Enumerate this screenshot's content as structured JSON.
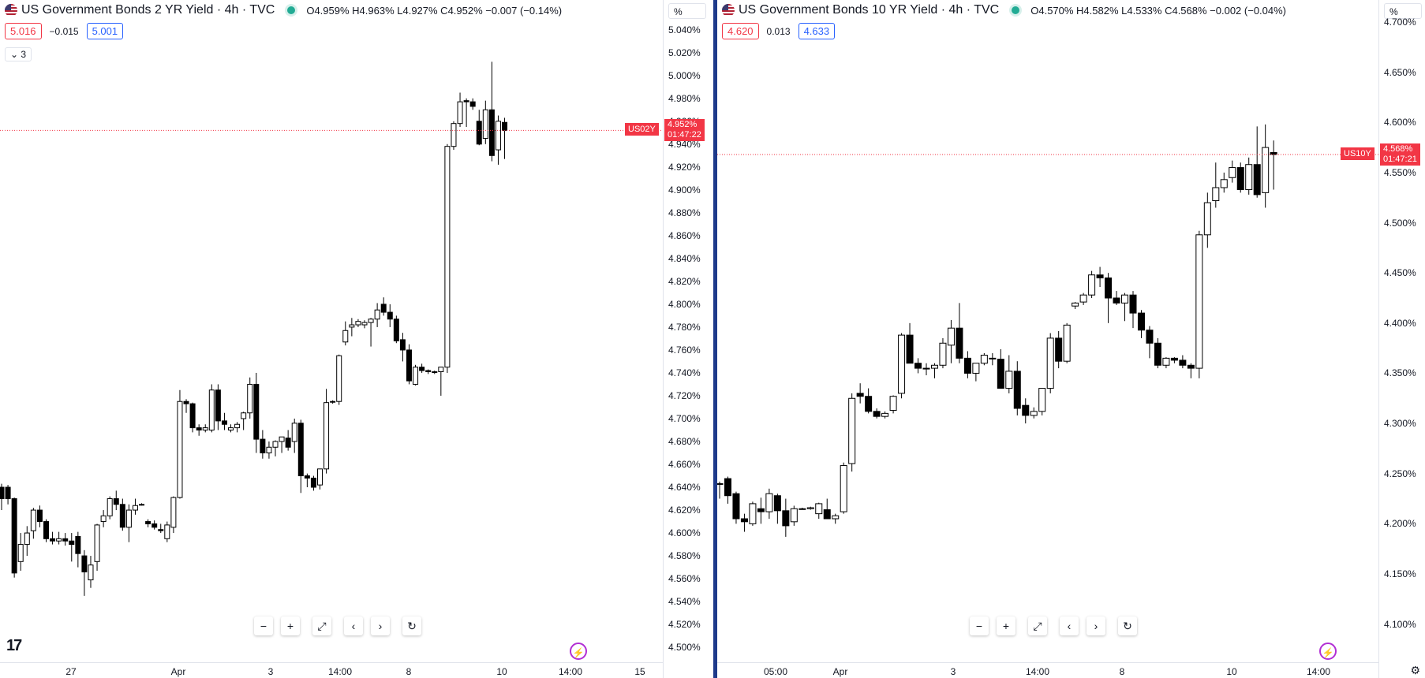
{
  "left": {
    "title": "US Government Bonds 2 YR Yield · 4h · TVC",
    "ohlc": "O4.959% H4.963% L4.927% C4.952% −0.007 (−0.14%)",
    "bid": "5.016",
    "spread": "−0.015",
    "ask": "5.001",
    "collapse_label": "3",
    "y_unit": "%",
    "symbol_tag": "US02Y",
    "last_price": "4.952%",
    "countdown": "01:47:22",
    "last_value": 4.952,
    "y_range": [
      4.487,
      5.066
    ],
    "y_ticks": [
      "5.040%",
      "5.020%",
      "5.000%",
      "4.980%",
      "4.960%",
      "4.940%",
      "4.920%",
      "4.900%",
      "4.880%",
      "4.860%",
      "4.840%",
      "4.820%",
      "4.800%",
      "4.780%",
      "4.760%",
      "4.740%",
      "4.720%",
      "4.700%",
      "4.680%",
      "4.660%",
      "4.640%",
      "4.620%",
      "4.600%",
      "4.580%",
      "4.560%",
      "4.540%",
      "4.520%",
      "4.500%"
    ],
    "x_ticks": [
      "27",
      "Apr",
      "3",
      "14:00",
      "8",
      "10",
      "14:00",
      "15"
    ],
    "candles": [
      [
        4.64,
        4.643,
        4.62,
        4.63
      ],
      [
        4.64,
        4.642,
        4.625,
        4.63
      ],
      [
        4.63,
        4.631,
        4.561,
        4.565
      ],
      [
        4.575,
        4.6,
        4.567,
        4.59
      ],
      [
        4.59,
        4.606,
        4.58,
        4.6
      ],
      [
        4.602,
        4.622,
        4.595,
        4.62
      ],
      [
        4.62,
        4.624,
        4.605,
        4.61
      ],
      [
        4.61,
        4.612,
        4.592,
        4.595
      ],
      [
        4.595,
        4.601,
        4.59,
        4.593
      ],
      [
        4.593,
        4.601,
        4.59,
        4.595
      ],
      [
        4.595,
        4.6,
        4.589,
        4.593
      ],
      [
        4.593,
        4.6,
        4.575,
        4.59
      ],
      [
        4.597,
        4.601,
        4.57,
        4.582
      ],
      [
        4.58,
        4.585,
        4.545,
        4.566
      ],
      [
        4.559,
        4.58,
        4.552,
        4.572
      ],
      [
        4.575,
        4.608,
        4.567,
        4.607
      ],
      [
        4.61,
        4.62,
        4.605,
        4.615
      ],
      [
        4.615,
        4.632,
        4.612,
        4.63
      ],
      [
        4.63,
        4.637,
        4.62,
        4.625
      ],
      [
        4.625,
        4.63,
        4.602,
        4.605
      ],
      [
        4.605,
        4.625,
        4.592,
        4.62
      ],
      [
        4.62,
        4.63,
        4.616,
        4.624
      ],
      [
        4.625,
        4.626,
        4.624,
        4.625
      ],
      [
        4.61,
        4.612,
        4.605,
        4.608
      ],
      [
        4.608,
        4.611,
        4.603,
        4.605
      ],
      [
        4.603,
        4.608,
        4.6,
        4.602
      ],
      [
        4.595,
        4.61,
        4.592,
        4.607
      ],
      [
        4.605,
        4.632,
        4.6,
        4.631
      ],
      [
        4.631,
        4.725,
        4.63,
        4.715
      ],
      [
        4.715,
        4.717,
        4.705,
        4.713
      ],
      [
        4.713,
        4.714,
        4.688,
        4.692
      ],
      [
        4.692,
        4.695,
        4.685,
        4.69
      ],
      [
        4.69,
        4.695,
        4.688,
        4.692
      ],
      [
        4.69,
        4.73,
        4.688,
        4.725
      ],
      [
        4.725,
        4.73,
        4.69,
        4.698
      ],
      [
        4.698,
        4.705,
        4.69,
        4.695
      ],
      [
        4.69,
        4.695,
        4.688,
        4.692
      ],
      [
        4.692,
        4.697,
        4.688,
        4.695
      ],
      [
        4.7,
        4.706,
        4.69,
        4.705
      ],
      [
        4.705,
        4.736,
        4.7,
        4.73
      ],
      [
        4.73,
        4.74,
        4.67,
        4.682
      ],
      [
        4.682,
        4.69,
        4.665,
        4.67
      ],
      [
        4.67,
        4.68,
        4.665,
        4.675
      ],
      [
        4.675,
        4.681,
        4.667,
        4.68
      ],
      [
        4.68,
        4.684,
        4.67,
        4.684
      ],
      [
        4.683,
        4.69,
        4.672,
        4.675
      ],
      [
        4.68,
        4.7,
        4.67,
        4.696
      ],
      [
        4.696,
        4.699,
        4.635,
        4.65
      ],
      [
        4.65,
        4.652,
        4.64,
        4.648
      ],
      [
        4.648,
        4.65,
        4.637,
        4.64
      ],
      [
        4.642,
        4.656,
        4.638,
        4.656
      ],
      [
        4.656,
        4.726,
        4.652,
        4.714
      ],
      [
        4.715,
        4.716,
        4.713,
        4.715
      ],
      [
        4.715,
        4.756,
        4.712,
        4.755
      ],
      [
        4.767,
        4.785,
        4.764,
        4.777
      ],
      [
        4.78,
        4.788,
        4.772,
        4.782
      ],
      [
        4.782,
        4.787,
        4.78,
        4.785
      ],
      [
        4.782,
        4.786,
        4.779,
        4.784
      ],
      [
        4.784,
        4.788,
        4.763,
        4.787
      ],
      [
        4.787,
        4.801,
        4.78,
        4.795
      ],
      [
        4.8,
        4.806,
        4.79,
        4.793
      ],
      [
        4.793,
        4.8,
        4.78,
        4.787
      ],
      [
        4.787,
        4.79,
        4.766,
        4.768
      ],
      [
        4.769,
        4.775,
        4.75,
        4.76
      ],
      [
        4.76,
        4.765,
        4.73,
        4.733
      ],
      [
        4.73,
        4.747,
        4.729,
        4.745
      ],
      [
        4.745,
        4.748,
        4.74,
        4.742
      ],
      [
        4.742,
        4.743,
        4.739,
        4.741
      ],
      [
        4.741,
        4.742,
        4.739,
        4.741
      ],
      [
        4.741,
        4.745,
        4.72,
        4.745
      ],
      [
        4.745,
        4.94,
        4.74,
        4.938
      ],
      [
        4.938,
        4.96,
        4.935,
        4.958
      ],
      [
        4.958,
        4.985,
        4.955,
        4.977
      ],
      [
        4.978,
        4.98,
        4.955,
        4.977
      ],
      [
        4.977,
        4.98,
        4.97,
        4.973
      ],
      [
        4.96,
        4.97,
        4.939,
        4.94
      ],
      [
        4.945,
        4.978,
        4.94,
        4.97
      ],
      [
        4.97,
        5.012,
        4.925,
        4.93
      ],
      [
        4.935,
        4.965,
        4.922,
        4.96
      ],
      [
        4.959,
        4.963,
        4.927,
        4.952
      ]
    ]
  },
  "right": {
    "title": "US Government Bonds 10 YR Yield · 4h · TVC",
    "ohlc": "O4.570% H4.582% L4.533% C4.568% −0.002 (−0.04%)",
    "bid": "4.620",
    "spread": "0.013",
    "ask": "4.633",
    "y_unit": "%",
    "symbol_tag": "US10Y",
    "last_price": "4.568%",
    "countdown": "01:47:21",
    "last_value": 4.568,
    "y_range": [
      4.062,
      4.722
    ],
    "y_ticks": [
      "4.700%",
      "4.650%",
      "4.600%",
      "4.550%",
      "4.500%",
      "4.450%",
      "4.400%",
      "4.350%",
      "4.300%",
      "4.250%",
      "4.200%",
      "4.150%",
      "4.100%"
    ],
    "x_ticks": [
      "05:00",
      "Apr",
      "3",
      "14:00",
      "8",
      "10",
      "14:00"
    ],
    "candles": [
      [
        4.24,
        4.242,
        4.225,
        4.24
      ],
      [
        4.245,
        4.247,
        4.22,
        4.228
      ],
      [
        4.23,
        4.232,
        4.2,
        4.205
      ],
      [
        4.205,
        4.21,
        4.192,
        4.202
      ],
      [
        4.2,
        4.222,
        4.198,
        4.22
      ],
      [
        4.215,
        4.226,
        4.2,
        4.212
      ],
      [
        4.212,
        4.235,
        4.205,
        4.23
      ],
      [
        4.228,
        4.23,
        4.2,
        4.213
      ],
      [
        4.213,
        4.225,
        4.187,
        4.198
      ],
      [
        4.202,
        4.218,
        4.198,
        4.215
      ],
      [
        4.215,
        4.216,
        4.214,
        4.215
      ],
      [
        4.215,
        4.217,
        4.214,
        4.216
      ],
      [
        4.21,
        4.221,
        4.205,
        4.22
      ],
      [
        4.214,
        4.225,
        4.208,
        4.205
      ],
      [
        4.205,
        4.21,
        4.2,
        4.208
      ],
      [
        4.212,
        4.261,
        4.21,
        4.258
      ],
      [
        4.26,
        4.33,
        4.252,
        4.325
      ],
      [
        4.33,
        4.34,
        4.32,
        4.327
      ],
      [
        4.327,
        4.335,
        4.31,
        4.312
      ],
      [
        4.312,
        4.315,
        4.305,
        4.307
      ],
      [
        4.307,
        4.312,
        4.305,
        4.31
      ],
      [
        4.313,
        4.328,
        4.31,
        4.327
      ],
      [
        4.33,
        4.39,
        4.325,
        4.388
      ],
      [
        4.388,
        4.4,
        4.36,
        4.36
      ],
      [
        4.36,
        4.365,
        4.35,
        4.355
      ],
      [
        4.355,
        4.36,
        4.348,
        4.355
      ],
      [
        4.355,
        4.36,
        4.345,
        4.358
      ],
      [
        4.358,
        4.385,
        4.355,
        4.38
      ],
      [
        4.378,
        4.403,
        4.36,
        4.395
      ],
      [
        4.395,
        4.42,
        4.36,
        4.365
      ],
      [
        4.365,
        4.372,
        4.345,
        4.35
      ],
      [
        4.35,
        4.36,
        4.342,
        4.36
      ],
      [
        4.36,
        4.37,
        4.358,
        4.368
      ],
      [
        4.365,
        4.37,
        4.358,
        4.365
      ],
      [
        4.364,
        4.374,
        4.335,
        4.335
      ],
      [
        4.335,
        4.368,
        4.33,
        4.352
      ],
      [
        4.352,
        4.362,
        4.308,
        4.315
      ],
      [
        4.318,
        4.325,
        4.3,
        4.308
      ],
      [
        4.308,
        4.316,
        4.305,
        4.312
      ],
      [
        4.312,
        4.335,
        4.308,
        4.335
      ],
      [
        4.335,
        4.39,
        4.33,
        4.385
      ],
      [
        4.385,
        4.392,
        4.355,
        4.362
      ],
      [
        4.362,
        4.4,
        4.36,
        4.398
      ],
      [
        4.417,
        4.421,
        4.414,
        4.42
      ],
      [
        4.421,
        4.43,
        4.418,
        4.428
      ],
      [
        4.428,
        4.452,
        4.425,
        4.448
      ],
      [
        4.448,
        4.456,
        4.436,
        4.445
      ],
      [
        4.445,
        4.45,
        4.4,
        4.425
      ],
      [
        4.425,
        4.432,
        4.418,
        4.42
      ],
      [
        4.42,
        4.43,
        4.402,
        4.428
      ],
      [
        4.428,
        4.432,
        4.395,
        4.41
      ],
      [
        4.41,
        4.413,
        4.385,
        4.393
      ],
      [
        4.393,
        4.397,
        4.365,
        4.38
      ],
      [
        4.38,
        4.385,
        4.355,
        4.358
      ],
      [
        4.358,
        4.366,
        4.355,
        4.365
      ],
      [
        4.365,
        4.366,
        4.36,
        4.363
      ],
      [
        4.363,
        4.368,
        4.355,
        4.358
      ],
      [
        4.358,
        4.36,
        4.345,
        4.355
      ],
      [
        4.355,
        4.492,
        4.345,
        4.488
      ],
      [
        4.488,
        4.53,
        4.475,
        4.52
      ],
      [
        4.522,
        4.56,
        4.515,
        4.535
      ],
      [
        4.535,
        4.55,
        4.53,
        4.543
      ],
      [
        4.545,
        4.562,
        4.54,
        4.555
      ],
      [
        4.555,
        4.56,
        4.53,
        4.533
      ],
      [
        4.533,
        4.565,
        4.528,
        4.558
      ],
      [
        4.558,
        4.596,
        4.525,
        4.528
      ],
      [
        4.53,
        4.598,
        4.515,
        4.575
      ],
      [
        4.57,
        4.582,
        4.533,
        4.568
      ]
    ]
  }
}
